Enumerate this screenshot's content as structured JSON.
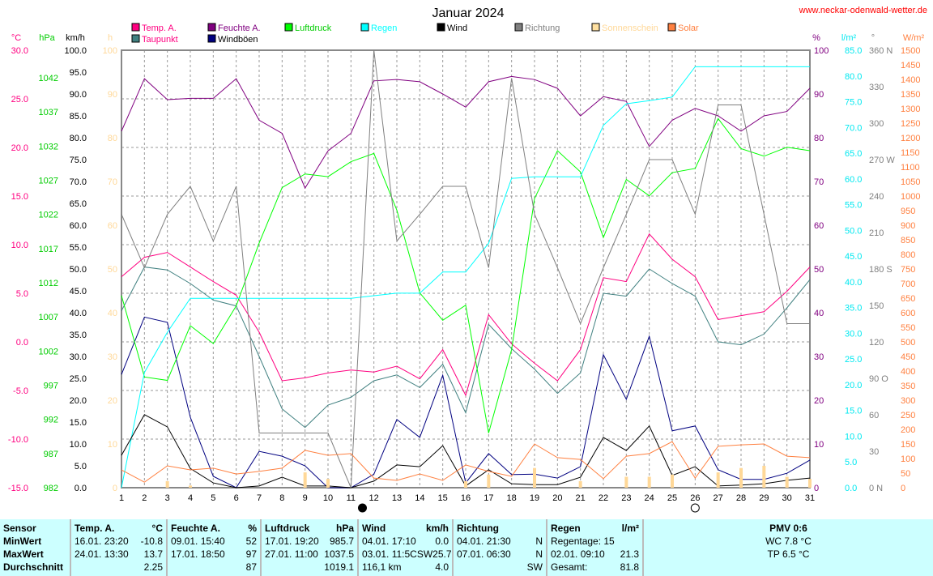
{
  "chart_data": {
    "type": "line",
    "title": "Januar 2024",
    "watermark": "www.neckar-odenwald-wetter.de",
    "x": [
      1,
      2,
      3,
      4,
      5,
      6,
      7,
      8,
      9,
      10,
      11,
      12,
      13,
      14,
      15,
      16,
      17,
      18,
      19,
      20,
      21,
      22,
      23,
      24,
      25,
      26,
      27,
      28,
      29,
      30,
      31
    ],
    "xlim": [
      1,
      31
    ],
    "grid": true,
    "legend_placement": "top",
    "axes": {
      "temp": {
        "unit": "°C",
        "range": [
          -15,
          30
        ],
        "ticks": [
          "30.0",
          "25.0",
          "20.0",
          "15.0",
          "10.0",
          "5.0",
          "0.0",
          "-5.0",
          "-10.0",
          "-15.0"
        ],
        "color": "#ff0080"
      },
      "pressure": {
        "unit": "hPa",
        "range": [
          982,
          1046
        ],
        "ticks": [
          "1042",
          "1037",
          "1032",
          "1027",
          "1022",
          "1017",
          "1012",
          "1007",
          "1002",
          "997",
          "992",
          "987",
          "982"
        ],
        "color": "#00cc00"
      },
      "wind": {
        "unit": "km/h",
        "range": [
          0,
          100
        ],
        "ticks": [
          "100.0",
          "95.0",
          "90.0",
          "85.0",
          "80.0",
          "75.0",
          "70.0",
          "65.0",
          "60.0",
          "55.0",
          "50.0",
          "45.0",
          "40.0",
          "35.0",
          "30.0",
          "25.0",
          "20.0",
          "15.0",
          "10.0",
          "5.0",
          "0.0"
        ],
        "color": "#000000"
      },
      "sun": {
        "unit": "h",
        "range": [
          0,
          100
        ],
        "ticks": [
          "100",
          "90",
          "80",
          "70",
          "60",
          "50",
          "40",
          "30",
          "20",
          "10",
          "0"
        ],
        "color": "#ffd898"
      },
      "humidity": {
        "unit": "%",
        "range": [
          0,
          100
        ],
        "ticks": [
          "100",
          "90",
          "80",
          "70",
          "60",
          "50",
          "40",
          "30",
          "20",
          "10",
          "0"
        ],
        "color": "#800080"
      },
      "rain": {
        "unit": "l/m²",
        "range": [
          0,
          85
        ],
        "ticks": [
          "85.0",
          "80.0",
          "75.0",
          "70.0",
          "65.0",
          "60.0",
          "55.0",
          "50.0",
          "45.0",
          "40.0",
          "35.0",
          "30.0",
          "25.0",
          "20.0",
          "15.0",
          "10.0",
          "5.0",
          "0.0"
        ],
        "color": "#00e8f0"
      },
      "direction": {
        "unit": "°",
        "range": [
          0,
          360
        ],
        "ticks": [
          "360 N",
          "330",
          "300",
          "270 W",
          "240",
          "210",
          "180 S",
          "150",
          "120",
          "90 O",
          "60",
          "30",
          "0 N"
        ],
        "color": "#808080"
      },
      "solar": {
        "unit": "W/m²",
        "range": [
          0,
          1500
        ],
        "ticks": [
          "1500",
          "1450",
          "1400",
          "1350",
          "1300",
          "1250",
          "1200",
          "1150",
          "1100",
          "1050",
          "1000",
          "950",
          "900",
          "850",
          "800",
          "750",
          "700",
          "650",
          "600",
          "550",
          "500",
          "450",
          "400",
          "350",
          "300",
          "250",
          "200",
          "150",
          "100",
          "50",
          "0"
        ],
        "color": "#ff8040"
      }
    },
    "series": [
      {
        "name": "Temp. A.",
        "axis": "temp",
        "color": "#ff0080",
        "values": [
          6.7,
          8.7,
          9.2,
          7.7,
          6.2,
          4.8,
          1.0,
          -4.0,
          -3.7,
          -3.2,
          -2.9,
          -3.1,
          -2.5,
          -3.8,
          -0.8,
          -5.5,
          2.8,
          -0.2,
          -2.2,
          -4.0,
          -0.8,
          6.6,
          6.2,
          11.1,
          8.5,
          6.7,
          2.3,
          2.7,
          3.1,
          5.2,
          7.7
        ]
      },
      {
        "name": "Taupunkt",
        "axis": "temp",
        "color": "#408080",
        "values": [
          3.2,
          7.7,
          7.4,
          6.0,
          4.3,
          3.7,
          -1.5,
          -6.9,
          -8.8,
          -6.5,
          -5.7,
          -4.0,
          -3.4,
          -4.7,
          -2.3,
          -7.3,
          1.8,
          -0.7,
          -2.8,
          -5.3,
          -3.2,
          5.0,
          4.7,
          7.5,
          6.0,
          4.7,
          0.0,
          -0.3,
          0.8,
          3.5,
          6.4
        ]
      },
      {
        "name": "Feuchte A.",
        "axis": "humidity",
        "color": "#800080",
        "values": [
          81.5,
          93.5,
          88.7,
          89,
          89,
          93.5,
          84,
          81,
          68.5,
          77,
          81,
          93,
          93.3,
          92.8,
          90,
          87,
          92.8,
          94,
          93.3,
          91.3,
          85,
          89.4,
          88.3,
          78,
          84,
          86.7,
          85,
          81.5,
          85,
          86,
          91.3
        ]
      },
      {
        "name": "Windböen",
        "axis": "wind",
        "color": "#000080",
        "values": [
          25.9,
          39,
          37.8,
          16.1,
          2.6,
          0,
          8.3,
          7.2,
          5,
          0,
          0,
          3.1,
          15.6,
          11.5,
          25.7,
          1.1,
          7.8,
          3,
          3.1,
          2.2,
          4.8,
          30.4,
          20.2,
          34.6,
          13,
          14.1,
          4.1,
          1.9,
          1.9,
          3.3,
          6.3
        ]
      },
      {
        "name": "Luftdruck",
        "axis": "pressure",
        "color": "#00ff00",
        "values": [
          1010.1,
          998.2,
          997.7,
          1005.7,
          1003.1,
          1008.6,
          1017.8,
          1025.9,
          1027.9,
          1027.5,
          1029.7,
          1030.9,
          1022.6,
          1010.5,
          1006.5,
          1008.7,
          990,
          1002.2,
          1024.3,
          1031.3,
          1028.2,
          1018.6,
          1027.1,
          1024.7,
          1028.1,
          1028.7,
          1036,
          1031.6,
          1030.5,
          1031.8,
          1031.3
        ]
      },
      {
        "name": "Regen",
        "axis": "rain",
        "color": "#00ffff",
        "values": [
          0,
          22.4,
          30.2,
          36.8,
          36.8,
          36.8,
          36.8,
          36.8,
          36.8,
          36.8,
          36.8,
          37.3,
          37.8,
          37.8,
          41.9,
          41.9,
          47.5,
          60.1,
          60.4,
          60.4,
          60.4,
          70.4,
          74.6,
          75.2,
          75.9,
          81.8,
          81.8,
          81.8,
          81.8,
          81.8,
          81.8
        ]
      },
      {
        "name": "Wind",
        "axis": "wind",
        "color": "#000000",
        "values": [
          7.4,
          16.7,
          13.9,
          4.4,
          1.1,
          0,
          0.4,
          2.4,
          0.4,
          0.4,
          0,
          1.5,
          5.2,
          4.8,
          9.6,
          0.4,
          4.1,
          0.9,
          0.7,
          0.7,
          2.4,
          11.5,
          8.5,
          14.1,
          2.8,
          4.8,
          0.4,
          0.6,
          0.9,
          1.7,
          2.2
        ]
      },
      {
        "name": "Richtung",
        "axis": "direction",
        "color": "#808080",
        "values": [
          225,
          181,
          225,
          248,
          203,
          248,
          45,
          45,
          45,
          45,
          0,
          360,
          203,
          225,
          248,
          248,
          181,
          337,
          225,
          181,
          135,
          181,
          225,
          270,
          270,
          225,
          315,
          315,
          225,
          135,
          135
        ]
      },
      {
        "name": "Solar",
        "axis": "solar",
        "color": "#ff8040",
        "values": [
          61,
          19,
          75,
          61,
          67,
          47,
          56,
          67,
          128,
          111,
          117,
          33,
          25,
          47,
          25,
          78,
          56,
          39,
          150,
          103,
          97,
          31,
          108,
          117,
          158,
          33,
          142,
          147,
          150,
          108,
          103
        ]
      },
      {
        "name": "Sonnenschein",
        "axis": "sun",
        "color": "#ffd898",
        "type": "bar",
        "values": [
          0,
          0,
          1.5,
          0.5,
          0,
          0,
          0,
          0,
          3.5,
          2,
          0,
          0,
          0,
          0,
          0,
          1.5,
          3,
          0,
          4.5,
          0,
          1.5,
          0,
          2.5,
          2.5,
          3,
          0,
          3.5,
          4.5,
          5,
          2.5,
          2
        ]
      }
    ],
    "legend": [
      {
        "label": "Temp. A.",
        "color": "#ff0080",
        "text_color": "#ff0080"
      },
      {
        "label": "Taupunkt",
        "color": "#408080",
        "text_color": "#ff0080"
      },
      {
        "label": "Feuchte A.",
        "color": "#800080",
        "text_color": "#800080"
      },
      {
        "label": "Windböen",
        "color": "#000080",
        "text_color": "#000000"
      },
      {
        "label": "Luftdruck",
        "color": "#00ff00",
        "text_color": "#00cc00"
      },
      {
        "label": "Regen",
        "color": "#00ffff",
        "text_color": "#00ffff"
      },
      {
        "label": "Wind",
        "color": "#000000",
        "text_color": "#000000"
      },
      {
        "label": "Richtung",
        "color": "#808080",
        "text_color": "#808080"
      },
      {
        "label": "Sonnenschein",
        "color": "#ffe0a0",
        "text_color": "#ffd898"
      },
      {
        "label": "Solar",
        "color": "#ff8040",
        "text_color": "#ff8040"
      }
    ],
    "moon_phases": [
      {
        "day": 11.5,
        "phase": "new-moon"
      },
      {
        "day": 26,
        "phase": "full-moon"
      }
    ]
  },
  "table": {
    "sensor": {
      "header": "Sensor",
      "rows": [
        "MinWert",
        "MaxWert",
        "Durchschnitt"
      ]
    },
    "temp": {
      "header": "Temp. A.",
      "unit": "°C",
      "rows": [
        [
          "16.01.  23:20",
          "-10.8"
        ],
        [
          "24.01.  13:30",
          "13.7"
        ],
        [
          "",
          "2.25"
        ]
      ]
    },
    "humidity": {
      "header": "Feuchte A.",
      "unit": "%",
      "rows": [
        [
          "09.01.  15:40",
          "52"
        ],
        [
          "17.01.  18:50",
          "97"
        ],
        [
          "",
          "87"
        ]
      ]
    },
    "pressure": {
      "header": "Luftdruck",
      "unit": "hPa",
      "rows": [
        [
          "17.01.  19:20",
          "985.7"
        ],
        [
          "27.01.  11:00",
          "1037.5"
        ],
        [
          "",
          "1019.1"
        ]
      ]
    },
    "wind": {
      "header": "Wind",
      "unit": "km/h",
      "rows": [
        [
          "04.01.  17:10",
          "0.0"
        ],
        [
          "03.01.  11:5CSW",
          "25.7"
        ],
        [
          "116,1 km",
          "4.0"
        ]
      ]
    },
    "direction": {
      "header": "Richtung",
      "unit": "",
      "rows": [
        [
          "04.01.  21:30",
          "N"
        ],
        [
          "07.01.  06:30",
          "N"
        ],
        [
          "",
          "SW"
        ]
      ]
    },
    "rain": {
      "header": "Regen",
      "unit": "l/m²",
      "rows": [
        [
          "Regentage: 15",
          ""
        ],
        [
          "02.01.  09:10",
          "21.3"
        ],
        [
          "Gesamt:",
          "81.8"
        ]
      ]
    },
    "pmv": {
      "header": "PMV 0:6",
      "rows": [
        "WC 7.8 °C",
        "TP 6.5 °C"
      ]
    }
  }
}
